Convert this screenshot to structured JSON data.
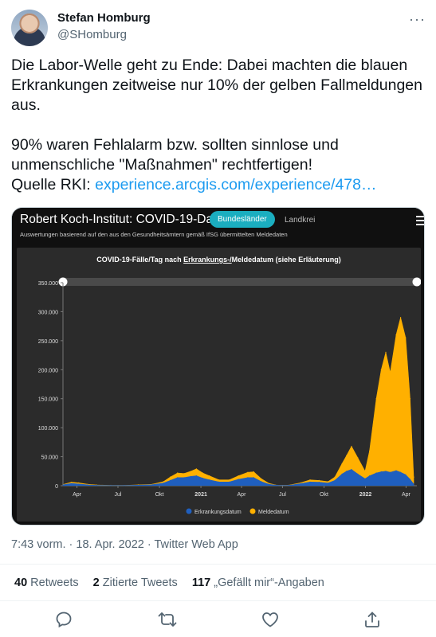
{
  "author": {
    "display_name": "Stefan Homburg",
    "handle": "@SHomburg"
  },
  "more_icon": "more-horizontal-icon",
  "tweet": {
    "text": "Die Labor-Welle geht zu Ende: Dabei machten die blauen Erkrankungen zeitweise nur 10% der gelben Fallmeldungen aus.\n\n90% waren Fehlalarm bzw. sollten sinnlose und unmenschliche \"Maßnahmen\" rechtfertigen!\nQuelle RKI: ",
    "link": "experience.arcgis.com/experience/478…"
  },
  "card": {
    "title": "Robert Koch-Institut: COVID-19-Das",
    "subtitle": "Auswertungen basierend auf den aus den Gesundheitsämtern gemäß IfSG übermittelten Meldedaten",
    "tab_active": "Bundesländer",
    "tab_inactive": "Landkrei"
  },
  "chart_data": {
    "type": "area",
    "title_pre": "COVID-19-Fälle/Tag nach ",
    "title_link": "Erkrankungs-/",
    "title_post": "Meldedatum (siehe Erläuterung)",
    "ylim": [
      0,
      350000
    ],
    "y_ticks": [
      "0",
      "50.000",
      "100.000",
      "150.000",
      "200.000",
      "250.000",
      "300.000",
      "350.000"
    ],
    "x_ticks": [
      "Apr",
      "Jul",
      "Okt",
      "2021",
      "Apr",
      "Jul",
      "Okt",
      "2022",
      "Apr"
    ],
    "grid": false,
    "legend_position": "bottom",
    "series": [
      {
        "name": "Meldedatum",
        "color": "#ffb000",
        "x": [
          "2020-03-01",
          "2020-03-20",
          "2020-04-05",
          "2020-04-25",
          "2020-05-15",
          "2020-06-15",
          "2020-07-15",
          "2020-08-15",
          "2020-09-15",
          "2020-10-10",
          "2020-10-25",
          "2020-11-10",
          "2020-11-25",
          "2020-12-10",
          "2020-12-22",
          "2021-01-05",
          "2021-01-20",
          "2021-02-10",
          "2021-03-05",
          "2021-03-25",
          "2021-04-15",
          "2021-04-28",
          "2021-05-15",
          "2021-06-01",
          "2021-06-20",
          "2021-07-15",
          "2021-08-10",
          "2021-08-31",
          "2021-09-20",
          "2021-10-10",
          "2021-10-25",
          "2021-11-10",
          "2021-11-20",
          "2021-12-01",
          "2021-12-15",
          "2021-12-31",
          "2022-01-10",
          "2022-01-25",
          "2022-02-05",
          "2022-02-15",
          "2022-02-25",
          "2022-03-10",
          "2022-03-20",
          "2022-03-31",
          "2022-04-10",
          "2022-04-18"
        ],
        "y": [
          2000,
          6000,
          5000,
          2500,
          1200,
          700,
          600,
          1500,
          2500,
          7000,
          15000,
          22000,
          21000,
          25000,
          29000,
          22000,
          17000,
          10000,
          10000,
          17000,
          23000,
          24000,
          12000,
          4000,
          700,
          1000,
          5000,
          10000,
          9000,
          7000,
          15000,
          38000,
          52000,
          68000,
          48000,
          25000,
          60000,
          150000,
          200000,
          230000,
          195000,
          260000,
          290000,
          255000,
          150000,
          15000
        ]
      },
      {
        "name": "Erkrankungsdatum",
        "color": "#1f5fbf",
        "x": [
          "2020-03-01",
          "2020-03-20",
          "2020-04-05",
          "2020-04-25",
          "2020-05-15",
          "2020-06-15",
          "2020-07-15",
          "2020-08-15",
          "2020-09-15",
          "2020-10-10",
          "2020-10-25",
          "2020-11-10",
          "2020-11-25",
          "2020-12-10",
          "2020-12-22",
          "2021-01-05",
          "2021-01-20",
          "2021-02-10",
          "2021-03-05",
          "2021-03-25",
          "2021-04-15",
          "2021-04-28",
          "2021-05-15",
          "2021-06-01",
          "2021-06-20",
          "2021-07-15",
          "2021-08-10",
          "2021-08-31",
          "2021-09-20",
          "2021-10-10",
          "2021-10-25",
          "2021-11-10",
          "2021-11-20",
          "2021-12-01",
          "2021-12-15",
          "2021-12-31",
          "2022-01-10",
          "2022-01-25",
          "2022-02-05",
          "2022-02-15",
          "2022-02-25",
          "2022-03-10",
          "2022-03-20",
          "2022-03-31",
          "2022-04-10",
          "2022-04-18"
        ],
        "y": [
          1500,
          4000,
          3000,
          1500,
          700,
          400,
          400,
          1000,
          1800,
          4500,
          9000,
          14000,
          14000,
          16000,
          17000,
          13000,
          10000,
          6500,
          6500,
          11000,
          14000,
          14000,
          7000,
          2500,
          500,
          700,
          3500,
          6500,
          6000,
          4500,
          9000,
          20000,
          25000,
          28000,
          20000,
          12000,
          17000,
          22000,
          24000,
          25000,
          23000,
          26000,
          23000,
          19000,
          11000,
          3000
        ]
      }
    ]
  },
  "meta": {
    "time": "7:43 vorm. · 18. Apr. 2022 · Twitter Web App"
  },
  "stats": {
    "retweets_count": "40",
    "retweets_label": " Retweets",
    "quotes_count": "2",
    "quotes_label": " Zitierte Tweets",
    "likes_count": "117",
    "likes_label": " „Gefällt mir“-Angaben"
  },
  "actions": [
    "reply-icon",
    "retweet-icon",
    "like-icon",
    "share-icon"
  ]
}
